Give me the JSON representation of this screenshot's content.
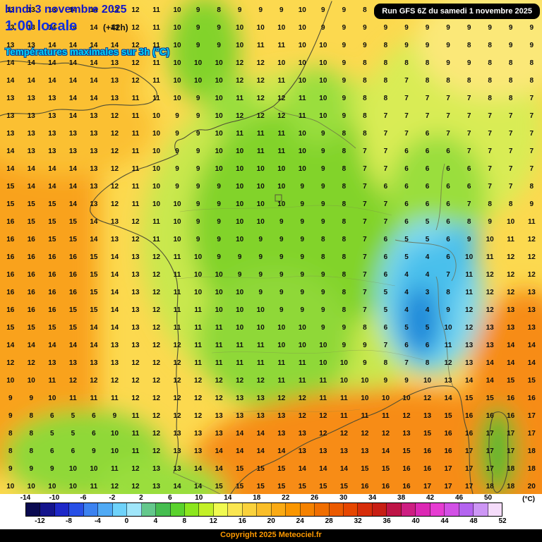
{
  "header": {
    "date_line": "lundi 3 novembre 2025",
    "time_line": "1:00 locale",
    "offset": "(+42h)",
    "subtitle": "Températures maximales sur 3h (°C)",
    "run_info": "Run GFS 6Z du samedi 1 novembre 2025"
  },
  "map": {
    "region": "France",
    "palette": {
      "base": "#fcd94f",
      "gold": "#fbc032",
      "orange": "#f9a21f",
      "deep_orange": "#f78c14",
      "pale_yellow": "#fbe878",
      "yellow_green": "#d9ec55",
      "light_green": "#c9e84e",
      "mid_green": "#9ade3c",
      "green": "#82d32b",
      "green2": "#8fd838",
      "dark_green": "#5cb82e",
      "pale_cyan": "#7fd9f2",
      "cyan": "#49c0ec",
      "blue": "#1d86d8"
    }
  },
  "grid": {
    "rows": [
      [
        13,
        13,
        13,
        14,
        14,
        13,
        12,
        11,
        10,
        9,
        8,
        9,
        9,
        9,
        10,
        9,
        9,
        8,
        9,
        9,
        9,
        8,
        8,
        9,
        9,
        9
      ],
      [
        13,
        13,
        14,
        14,
        14,
        13,
        12,
        11,
        10,
        9,
        9,
        10,
        10,
        10,
        10,
        9,
        9,
        9,
        9,
        9,
        9,
        9,
        9,
        9,
        9,
        9
      ],
      [
        13,
        13,
        14,
        14,
        14,
        14,
        12,
        11,
        10,
        9,
        9,
        10,
        11,
        11,
        10,
        10,
        9,
        9,
        8,
        9,
        9,
        9,
        8,
        8,
        9,
        9
      ],
      [
        14,
        14,
        14,
        14,
        14,
        13,
        12,
        11,
        10,
        10,
        10,
        12,
        12,
        10,
        10,
        10,
        9,
        8,
        8,
        8,
        8,
        9,
        9,
        8,
        8,
        8
      ],
      [
        14,
        14,
        14,
        14,
        14,
        13,
        12,
        11,
        10,
        10,
        10,
        12,
        12,
        11,
        10,
        10,
        9,
        8,
        8,
        7,
        8,
        8,
        8,
        8,
        8,
        8
      ],
      [
        13,
        13,
        13,
        14,
        14,
        13,
        11,
        11,
        10,
        9,
        10,
        11,
        12,
        12,
        11,
        10,
        9,
        8,
        8,
        7,
        7,
        7,
        7,
        8,
        8,
        7
      ],
      [
        13,
        13,
        13,
        14,
        13,
        12,
        11,
        10,
        9,
        9,
        10,
        12,
        12,
        12,
        11,
        10,
        9,
        8,
        7,
        7,
        7,
        7,
        7,
        7,
        7,
        7
      ],
      [
        13,
        13,
        13,
        13,
        13,
        12,
        11,
        10,
        9,
        9,
        10,
        11,
        11,
        11,
        10,
        9,
        8,
        8,
        7,
        7,
        6,
        7,
        7,
        7,
        7,
        7
      ],
      [
        14,
        13,
        13,
        13,
        13,
        12,
        11,
        10,
        9,
        9,
        10,
        10,
        11,
        11,
        10,
        9,
        8,
        7,
        7,
        6,
        6,
        6,
        7,
        7,
        7,
        7
      ],
      [
        14,
        14,
        14,
        14,
        13,
        12,
        11,
        10,
        9,
        9,
        10,
        10,
        10,
        10,
        10,
        9,
        8,
        7,
        7,
        6,
        6,
        6,
        6,
        7,
        7,
        7
      ],
      [
        15,
        14,
        14,
        14,
        13,
        12,
        11,
        10,
        9,
        9,
        9,
        10,
        10,
        10,
        9,
        9,
        8,
        7,
        6,
        6,
        6,
        6,
        6,
        7,
        7,
        8
      ],
      [
        15,
        15,
        15,
        14,
        13,
        12,
        11,
        10,
        10,
        9,
        9,
        10,
        10,
        10,
        9,
        9,
        8,
        7,
        7,
        6,
        6,
        6,
        7,
        8,
        8,
        9
      ],
      [
        16,
        15,
        15,
        15,
        14,
        13,
        12,
        11,
        10,
        9,
        9,
        10,
        10,
        9,
        9,
        9,
        8,
        7,
        7,
        6,
        5,
        6,
        8,
        9,
        10,
        11
      ],
      [
        16,
        16,
        15,
        15,
        14,
        13,
        12,
        11,
        10,
        9,
        9,
        10,
        9,
        9,
        9,
        8,
        8,
        7,
        6,
        5,
        5,
        6,
        9,
        10,
        11,
        12
      ],
      [
        16,
        16,
        16,
        16,
        15,
        14,
        13,
        12,
        11,
        10,
        9,
        9,
        9,
        9,
        9,
        8,
        8,
        7,
        6,
        5,
        4,
        6,
        10,
        11,
        12,
        12
      ],
      [
        16,
        16,
        16,
        16,
        15,
        14,
        13,
        12,
        11,
        10,
        10,
        9,
        9,
        9,
        9,
        9,
        8,
        7,
        6,
        4,
        4,
        7,
        11,
        12,
        12,
        12
      ],
      [
        16,
        16,
        16,
        16,
        15,
        14,
        13,
        12,
        11,
        10,
        10,
        10,
        9,
        9,
        9,
        9,
        8,
        7,
        5,
        4,
        3,
        8,
        11,
        12,
        12,
        13
      ],
      [
        16,
        16,
        16,
        15,
        15,
        14,
        13,
        12,
        11,
        11,
        10,
        10,
        10,
        9,
        9,
        9,
        8,
        7,
        5,
        4,
        4,
        9,
        12,
        12,
        13,
        13
      ],
      [
        15,
        15,
        15,
        15,
        14,
        14,
        13,
        12,
        11,
        11,
        11,
        10,
        10,
        10,
        10,
        9,
        9,
        8,
        6,
        5,
        5,
        10,
        12,
        13,
        13,
        13
      ],
      [
        14,
        14,
        14,
        14,
        14,
        13,
        13,
        12,
        12,
        11,
        11,
        11,
        11,
        10,
        10,
        10,
        9,
        9,
        7,
        6,
        6,
        11,
        13,
        13,
        14,
        14
      ],
      [
        12,
        12,
        13,
        13,
        13,
        13,
        12,
        12,
        12,
        11,
        11,
        11,
        11,
        11,
        11,
        10,
        10,
        9,
        8,
        7,
        8,
        12,
        13,
        14,
        14,
        14
      ],
      [
        10,
        10,
        11,
        12,
        12,
        12,
        12,
        12,
        12,
        12,
        12,
        12,
        12,
        11,
        11,
        11,
        10,
        10,
        9,
        9,
        10,
        13,
        14,
        14,
        15,
        15
      ],
      [
        9,
        9,
        10,
        11,
        11,
        11,
        12,
        12,
        12,
        12,
        12,
        13,
        13,
        12,
        12,
        11,
        11,
        10,
        10,
        10,
        12,
        14,
        15,
        15,
        16,
        16
      ],
      [
        9,
        8,
        6,
        5,
        6,
        9,
        11,
        12,
        12,
        12,
        13,
        13,
        13,
        13,
        12,
        12,
        11,
        11,
        11,
        12,
        13,
        15,
        16,
        16,
        16,
        17
      ],
      [
        8,
        8,
        5,
        5,
        6,
        10,
        11,
        12,
        13,
        13,
        13,
        14,
        14,
        13,
        13,
        12,
        12,
        12,
        12,
        13,
        15,
        16,
        16,
        17,
        17,
        17
      ],
      [
        8,
        8,
        6,
        6,
        9,
        10,
        11,
        12,
        13,
        13,
        14,
        14,
        14,
        14,
        13,
        13,
        13,
        13,
        14,
        15,
        16,
        16,
        17,
        17,
        17,
        18
      ],
      [
        9,
        9,
        9,
        10,
        10,
        11,
        12,
        13,
        13,
        14,
        14,
        15,
        15,
        15,
        14,
        14,
        14,
        15,
        15,
        16,
        16,
        17,
        17,
        17,
        18,
        18
      ],
      [
        10,
        10,
        10,
        10,
        11,
        12,
        12,
        13,
        14,
        14,
        15,
        15,
        15,
        15,
        15,
        15,
        15,
        16,
        16,
        16,
        17,
        17,
        17,
        18,
        18,
        20
      ]
    ]
  },
  "scale": {
    "unit": "(°C)",
    "min": -14,
    "max": 52,
    "step": 2,
    "top_labels": [
      -14,
      -10,
      -6,
      -2,
      2,
      6,
      10,
      14,
      18,
      22,
      26,
      30,
      34,
      38,
      42,
      46,
      50
    ],
    "bottom_labels": [
      -12,
      -8,
      -4,
      0,
      4,
      8,
      12,
      16,
      20,
      24,
      28,
      32,
      36,
      40,
      44,
      48,
      52
    ],
    "colors": [
      "#0a0a50",
      "#14148c",
      "#1e28c8",
      "#2850e6",
      "#3c82f0",
      "#50aaf5",
      "#6ed2fa",
      "#a0e6fa",
      "#64c88c",
      "#46be50",
      "#5ad22d",
      "#8ce61e",
      "#c3f028",
      "#f0fa50",
      "#fae650",
      "#fad23c",
      "#fabe28",
      "#faaa14",
      "#fa9600",
      "#f58200",
      "#f06e00",
      "#eb5a00",
      "#e64600",
      "#d72d0a",
      "#c81e14",
      "#be1446",
      "#cd1e82",
      "#dc28b4",
      "#e63cd2",
      "#d250e6",
      "#b464f0",
      "#cd96f5",
      "#f5dcfa"
    ]
  },
  "footer": {
    "copyright": "Copyright 2025 Meteociel.fr"
  }
}
